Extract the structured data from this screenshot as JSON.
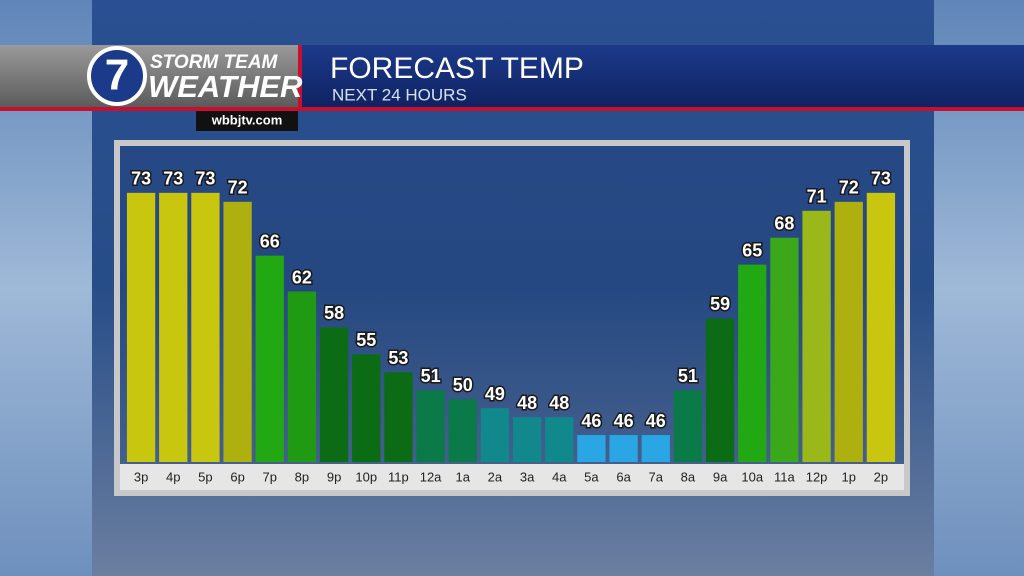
{
  "branding": {
    "station_top": "STORM TEAM",
    "station_bottom": "WEATHER",
    "logo_number": "7",
    "website": "wbbjtv.com"
  },
  "chart_data": {
    "type": "bar",
    "title": "FORECAST TEMP",
    "subtitle": "NEXT 24 HOURS",
    "categories": [
      "3p",
      "4p",
      "5p",
      "6p",
      "7p",
      "8p",
      "9p",
      "10p",
      "11p",
      "12a",
      "1a",
      "2a",
      "3a",
      "4a",
      "5a",
      "6a",
      "7a",
      "8a",
      "9a",
      "10a",
      "11a",
      "12p",
      "1p",
      "2p"
    ],
    "values": [
      73,
      73,
      73,
      72,
      66,
      62,
      58,
      55,
      53,
      51,
      50,
      49,
      48,
      48,
      46,
      46,
      46,
      51,
      59,
      65,
      68,
      71,
      72,
      73
    ],
    "colors": [
      "#c9c610",
      "#c9c610",
      "#c9c610",
      "#aeb010",
      "#22a812",
      "#1f9a12",
      "#0c6c16",
      "#0c6c16",
      "#0c6c16",
      "#0a7a48",
      "#0a7a48",
      "#11898c",
      "#11898c",
      "#11898c",
      "#2aa6e4",
      "#2aa6e4",
      "#2aa6e4",
      "#0a7a48",
      "#0c6c16",
      "#22a812",
      "#3aa818",
      "#9ab81a",
      "#aeb010",
      "#c9c610"
    ],
    "ylim": [
      43,
      78
    ]
  }
}
